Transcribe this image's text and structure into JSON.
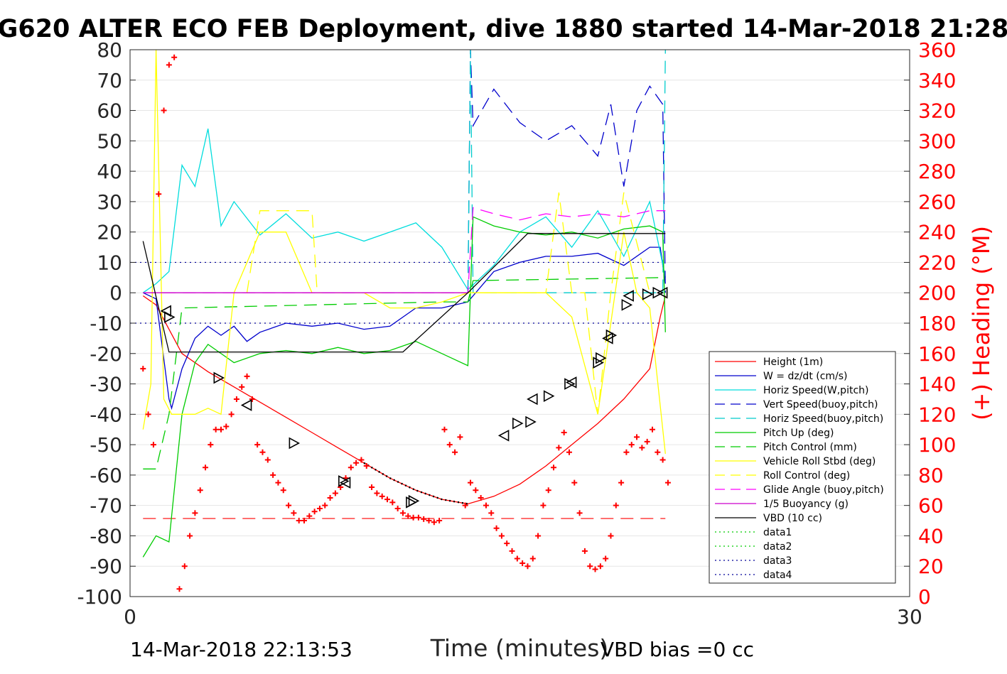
{
  "chart_data": {
    "type": "line",
    "title": "G620 ALTER ECO FEB Deployment, dive 1880 started 14-Mar-2018 21:28",
    "xlabel": "Time (minutes)",
    "ylabel_right": "(+) Heading (°M)",
    "xlim": [
      0,
      30
    ],
    "ylim": [
      -100,
      80
    ],
    "ylim_right": [
      0,
      360
    ],
    "xticks": [
      "0",
      "30"
    ],
    "yticks": [
      "80",
      "70",
      "60",
      "50",
      "40",
      "30",
      "20",
      "10",
      "0",
      "-10",
      "-20",
      "-30",
      "-40",
      "-50",
      "-60",
      "-70",
      "-80",
      "-90",
      "-100"
    ],
    "yticks_right": [
      "360",
      "340",
      "320",
      "300",
      "280",
      "260",
      "240",
      "220",
      "200",
      "180",
      "160",
      "140",
      "120",
      "100",
      "80",
      "60",
      "40",
      "20",
      "0"
    ],
    "grid": true,
    "legend_position": "lower-right",
    "legend": [
      {
        "label": "Height (1m)",
        "color": "#ff0000",
        "dash": "solid"
      },
      {
        "label": "W = dz/dt (cm/s)",
        "color": "#0000cc",
        "dash": "solid"
      },
      {
        "label": "Horiz Speed(W,pitch)",
        "color": "#00dddd",
        "dash": "solid"
      },
      {
        "label": "Vert Speed(buoy,pitch)",
        "color": "#0000cc",
        "dash": "dash"
      },
      {
        "label": "Horiz Speed(buoy,pitch)",
        "color": "#00cccc",
        "dash": "dash"
      },
      {
        "label": "Pitch Up (deg)",
        "color": "#00cc00",
        "dash": "solid"
      },
      {
        "label": "Pitch Control (mm)",
        "color": "#00cc00",
        "dash": "dash"
      },
      {
        "label": "Vehicle Roll Stbd (deg)",
        "color": "#ffff00",
        "dash": "solid"
      },
      {
        "label": "Roll Control (deg)",
        "color": "#ffff00",
        "dash": "dash"
      },
      {
        "label": "Glide Angle (buoy,pitch)",
        "color": "#ff00ff",
        "dash": "dash"
      },
      {
        "label": "1/5 Buoyancy (g)",
        "color": "#cc00cc",
        "dash": "solid"
      },
      {
        "label": "VBD (10 cc)",
        "color": "#000000",
        "dash": "solid"
      },
      {
        "label": "data1",
        "color": "#00cc00",
        "dash": "dot"
      },
      {
        "label": "data2",
        "color": "#00cc00",
        "dash": "dot"
      },
      {
        "label": "data3",
        "color": "#000099",
        "dash": "dot"
      },
      {
        "label": "data4",
        "color": "#000099",
        "dash": "dot"
      }
    ],
    "reference_lines": [
      {
        "y": 10,
        "color": "#000099",
        "dash": "dot"
      },
      {
        "y": -10,
        "color": "#000099",
        "dash": "dot"
      },
      {
        "y": -74.3,
        "color": "#ff0000",
        "dash": "dash",
        "x": [
          0.5,
          20.6
        ]
      }
    ],
    "series": [
      {
        "name": "Height (1m)",
        "color": "#ff0000",
        "dash": "solid",
        "x": [
          0.5,
          1.0,
          1.5,
          2.0,
          3.0,
          4.0,
          5.0,
          6.0,
          7.0,
          8.0,
          9.0,
          10.0,
          11.0,
          12.0,
          13.0,
          14.0,
          15.0,
          16.0,
          17.0,
          18.0,
          19.0,
          20.0,
          20.4,
          20.6
        ],
        "y": [
          -1,
          -4,
          -12,
          -20,
          -26,
          -31,
          -36,
          -41,
          -46,
          -51,
          -56,
          -61,
          -65,
          -68,
          -69.5,
          -67,
          -63,
          -57,
          -50,
          -43,
          -35,
          -25,
          -8,
          -1
        ]
      },
      {
        "name": "W = dz/dt (cm/s)",
        "color": "#0000cc",
        "dash": "solid",
        "x": [
          0.5,
          1.0,
          1.5,
          1.6,
          2.0,
          2.5,
          3.0,
          3.5,
          4.0,
          4.5,
          5.0,
          6.0,
          7.0,
          8.0,
          9.0,
          10.0,
          11.0,
          12.0,
          13.0,
          14.0,
          15.0,
          16.0,
          17.0,
          18.0,
          19.0,
          20.0,
          20.4,
          20.6
        ],
        "y": [
          0,
          -2,
          -35,
          -38,
          -25,
          -15,
          -11,
          -14,
          -11,
          -16,
          -13,
          -10,
          -11,
          -10,
          -12,
          -11,
          -5,
          -5,
          -3,
          7,
          10,
          12,
          12,
          13,
          9,
          15,
          15,
          3
        ]
      },
      {
        "name": "Horiz Speed(W,pitch)",
        "color": "#00dddd",
        "dash": "solid",
        "x": [
          0.5,
          1.0,
          1.5,
          2.0,
          2.5,
          3.0,
          3.5,
          4.0,
          5.0,
          6.0,
          7.0,
          8.0,
          9.0,
          10.0,
          11.0,
          12.0,
          13.0,
          14.0,
          15.0,
          16.0,
          17.0,
          18.0,
          19.0,
          20.0,
          20.6
        ],
        "y": [
          0,
          3,
          7,
          42,
          35,
          54,
          22,
          30,
          19,
          26,
          18,
          20,
          17,
          20,
          23,
          15,
          1,
          9,
          20,
          25,
          15,
          27,
          12,
          30,
          5
        ]
      },
      {
        "name": "Vert Speed(buoy,pitch)",
        "color": "#0000cc",
        "dash": "dash",
        "x": [
          13.0,
          13.1,
          13.2,
          14.0,
          15.0,
          16.0,
          17.0,
          17.5,
          18.0,
          18.5,
          19.0,
          19.5,
          20.0,
          20.5,
          20.6
        ],
        "y": [
          0,
          80,
          55,
          67,
          56,
          50,
          55,
          50,
          45,
          62,
          35,
          60,
          68,
          62,
          0
        ]
      },
      {
        "name": "Horiz Speed(buoy,pitch)",
        "color": "#00cccc",
        "dash": "dash",
        "x": [
          13.0,
          13.1,
          13.2,
          13.5,
          20.5,
          20.6
        ],
        "y": [
          0,
          80,
          0,
          0,
          0,
          80
        ]
      },
      {
        "name": "Pitch Up (deg)",
        "color": "#00cc00",
        "dash": "solid",
        "x": [
          0.5,
          1.0,
          1.5,
          2.0,
          2.5,
          3.0,
          4.0,
          5.0,
          6.0,
          7.0,
          8.0,
          9.0,
          10.0,
          11.0,
          12.0,
          13.0,
          13.2,
          14.0,
          15.0,
          16.0,
          17.0,
          18.0,
          19.0,
          20.0,
          20.5,
          20.6
        ],
        "y": [
          -87,
          -80,
          -82,
          -40,
          -23,
          -17,
          -23,
          -20,
          -19,
          -20,
          -18,
          -20,
          -19,
          -16,
          -20,
          -24,
          25,
          22,
          20,
          19,
          20,
          18,
          21,
          22,
          20,
          -13
        ]
      },
      {
        "name": "Pitch Control (mm)",
        "color": "#00cc00",
        "dash": "dash",
        "x": [
          0.5,
          1.0,
          1.5,
          2.0,
          12.0,
          13.0,
          13.2,
          20.6
        ],
        "y": [
          -58,
          -58,
          -40,
          -5,
          -3,
          -3,
          4,
          5
        ]
      },
      {
        "name": "Vehicle Roll Stbd (deg)",
        "color": "#ffff00",
        "dash": "solid",
        "x": [
          0.5,
          0.8,
          1.0,
          1.3,
          1.6,
          2.0,
          2.5,
          3.0,
          3.5,
          4.0,
          5.0,
          6.0,
          7.0,
          8.0,
          9.0,
          10.0,
          11.0,
          12.0,
          13.0,
          14.0,
          15.0,
          16.0,
          17.0,
          18.0,
          19.0,
          19.5,
          20.0,
          20.6
        ],
        "y": [
          -45,
          -30,
          80,
          -35,
          -40,
          -40,
          -40,
          -38,
          -40,
          0,
          20,
          20,
          0,
          0,
          0,
          -5,
          -5,
          -3,
          0,
          0,
          0,
          0,
          -8,
          -40,
          20,
          0,
          -5,
          -53
        ]
      },
      {
        "name": "Roll Control (deg)",
        "color": "#ffff00",
        "dash": "dash",
        "x": [
          4.5,
          5.0,
          6.0,
          7.0,
          7.2,
          16.0,
          16.5,
          17.0,
          17.5,
          18.0,
          18.5,
          19.0,
          20.0
        ],
        "y": [
          0,
          27,
          27,
          27,
          0,
          0,
          33,
          0,
          0,
          -40,
          0,
          33,
          0
        ]
      },
      {
        "name": "Glide Angle (buoy,pitch)",
        "color": "#ff00ff",
        "dash": "dash",
        "x": [
          0.5,
          13.0,
          13.2,
          14.0,
          15.0,
          16.0,
          17.0,
          18.0,
          19.0,
          20.0,
          20.6
        ],
        "y": [
          0,
          0,
          28,
          26,
          24,
          26,
          25,
          26,
          25,
          27,
          27
        ]
      },
      {
        "name": "1/5 Buoyancy (g)",
        "color": "#cc00cc",
        "dash": "solid",
        "x": [
          0.5,
          13.0
        ],
        "y": [
          0,
          0
        ]
      },
      {
        "name": "VBD (10 cc)",
        "color": "#000000",
        "dash": "solid",
        "x": [
          0.5,
          1.5,
          8.2,
          10.5,
          13.0,
          15.3,
          20.6
        ],
        "y": [
          17,
          -19.5,
          -19.5,
          -19.5,
          0,
          19.5,
          19.5
        ]
      }
    ],
    "heading_points": {
      "name": "Heading",
      "axis": "right",
      "color": "#ff0000",
      "marker": "+",
      "x": [
        0.5,
        0.7,
        0.9,
        1.1,
        1.3,
        1.5,
        1.7,
        1.9,
        2.1,
        2.3,
        2.5,
        2.7,
        2.9,
        3.1,
        3.3,
        3.5,
        3.7,
        3.9,
        4.1,
        4.3,
        4.5,
        4.7,
        4.9,
        5.1,
        5.3,
        5.5,
        5.7,
        5.9,
        6.1,
        6.3,
        6.5,
        6.7,
        6.9,
        7.1,
        7.3,
        7.5,
        7.7,
        7.9,
        8.1,
        8.3,
        8.5,
        8.7,
        8.9,
        9.1,
        9.3,
        9.5,
        9.7,
        9.9,
        10.1,
        10.3,
        10.5,
        10.7,
        10.9,
        11.1,
        11.3,
        11.5,
        11.7,
        11.9,
        12.1,
        12.3,
        12.5,
        12.7,
        12.9,
        13.1,
        13.3,
        13.5,
        13.7,
        13.9,
        14.1,
        14.3,
        14.5,
        14.7,
        14.9,
        15.1,
        15.3,
        15.5,
        15.7,
        15.9,
        16.1,
        16.3,
        16.5,
        16.7,
        16.9,
        17.1,
        17.3,
        17.5,
        17.7,
        17.9,
        18.1,
        18.3,
        18.5,
        18.7,
        18.9,
        19.1,
        19.3,
        19.5,
        19.7,
        19.9,
        20.1,
        20.3,
        20.5,
        20.7
      ],
      "y": [
        150,
        120,
        100,
        265,
        320,
        350,
        355,
        5,
        20,
        40,
        55,
        70,
        85,
        100,
        110,
        110,
        112,
        120,
        130,
        138,
        145,
        130,
        100,
        95,
        90,
        80,
        75,
        70,
        60,
        55,
        50,
        50,
        53,
        56,
        58,
        60,
        65,
        68,
        72,
        78,
        85,
        88,
        90,
        86,
        72,
        68,
        66,
        64,
        62,
        58,
        55,
        53,
        52,
        52,
        51,
        50,
        49,
        50,
        110,
        100,
        95,
        105,
        60,
        75,
        70,
        65,
        60,
        55,
        45,
        40,
        35,
        30,
        25,
        22,
        20,
        25,
        40,
        60,
        70,
        85,
        98,
        108,
        95,
        75,
        55,
        30,
        20,
        18,
        20,
        25,
        40,
        60,
        75,
        95,
        100,
        105,
        98,
        102,
        110,
        95,
        90,
        75
      ]
    },
    "height_markers": {
      "color": "#000000",
      "marker": "triangle-hollow",
      "x": [
        1.4,
        1.5,
        3.4,
        4.5,
        6.3,
        8.2,
        8.3,
        10.8,
        10.9,
        14.4,
        14.9,
        15.4,
        15.5,
        16.1,
        16.9,
        17.0,
        18.0,
        18.1,
        18.4,
        18.5,
        19.1,
        19.2,
        19.9,
        20.3,
        20.5
      ],
      "y": [
        -6,
        -8,
        -28,
        -37,
        -49.5,
        -62,
        -62.5,
        -69,
        -68.5,
        -47,
        -43,
        -42.5,
        -35,
        -34,
        -30,
        -29.5,
        -23,
        -21.5,
        -15,
        -14,
        -4,
        -1,
        -0.5,
        0,
        0
      ]
    },
    "footer": {
      "left": "14-Mar-2018 22:13:53",
      "right": "VBD bias =0 cc"
    }
  }
}
